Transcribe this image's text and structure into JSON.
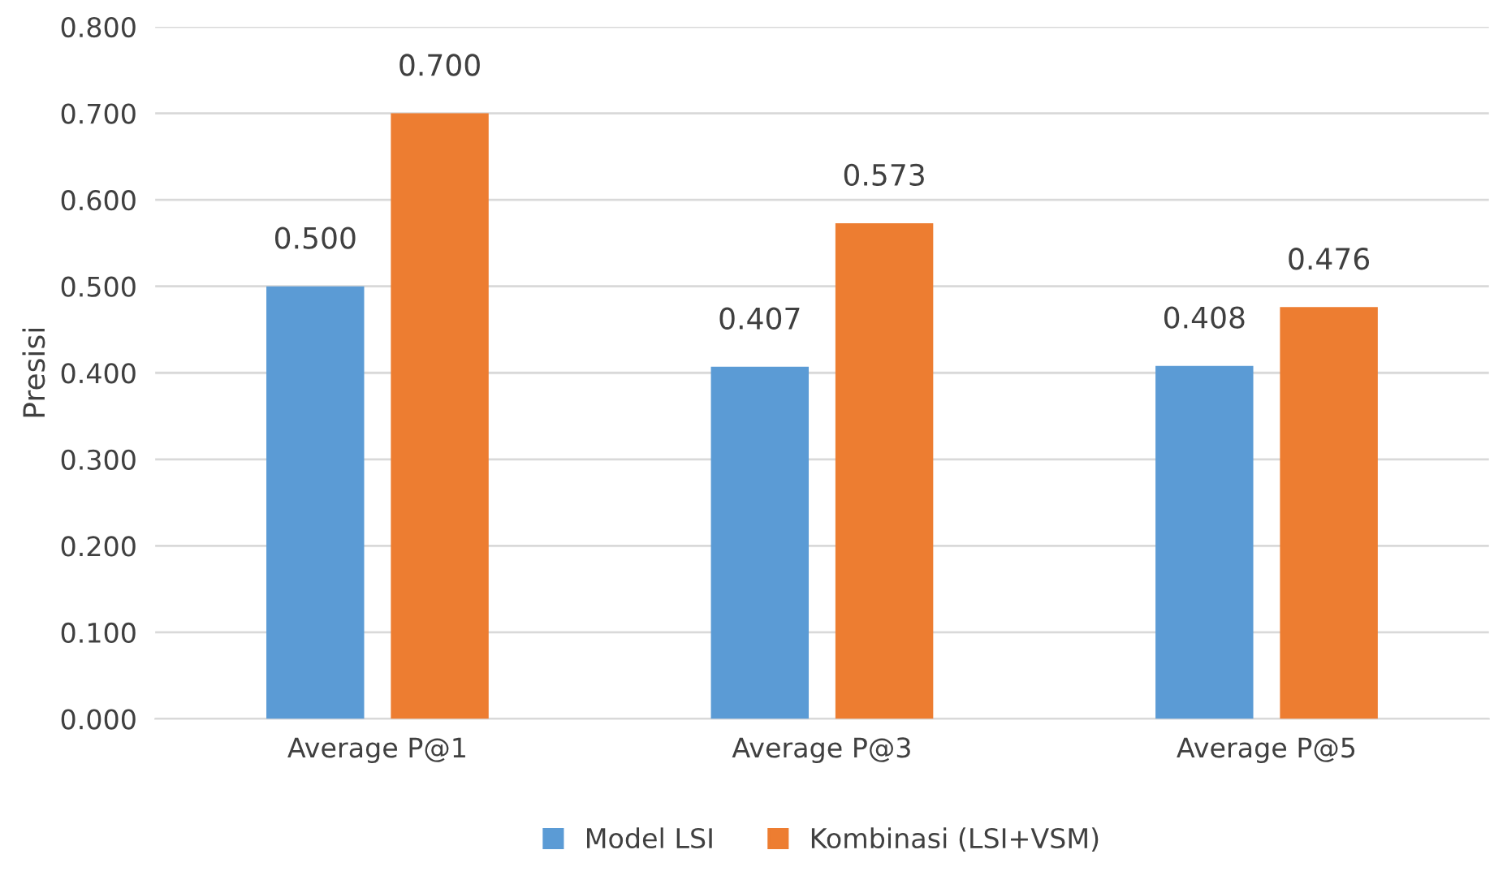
{
  "chart_data": {
    "type": "bar",
    "ylabel": "Presisi",
    "categories": [
      "Average P@1",
      "Average P@3",
      "Average P@5"
    ],
    "series": [
      {
        "name": "Model LSI",
        "color": "#5b9bd5",
        "values": [
          0.5,
          0.407,
          0.408
        ],
        "value_labels": [
          "0.500",
          "0.407",
          "0.408"
        ]
      },
      {
        "name": "Kombinasi (LSI+VSM)",
        "color": "#ed7d31",
        "values": [
          0.7,
          0.573,
          0.476
        ],
        "value_labels": [
          "0.700",
          "0.573",
          "0.476"
        ]
      }
    ],
    "ylim": [
      0,
      0.8
    ],
    "yticks": [
      {
        "value": 0,
        "label": "0.000"
      },
      {
        "value": 0.1,
        "label": "0.100"
      },
      {
        "value": 0.2,
        "label": "0.200"
      },
      {
        "value": 0.3,
        "label": "0.300"
      },
      {
        "value": 0.4,
        "label": "0.400"
      },
      {
        "value": 0.5,
        "label": "0.500"
      },
      {
        "value": 0.6,
        "label": "0.600"
      },
      {
        "value": 0.7,
        "label": "0.700"
      },
      {
        "value": 0.8,
        "label": "0.800"
      }
    ],
    "grid": "y",
    "legend": "bottom"
  }
}
